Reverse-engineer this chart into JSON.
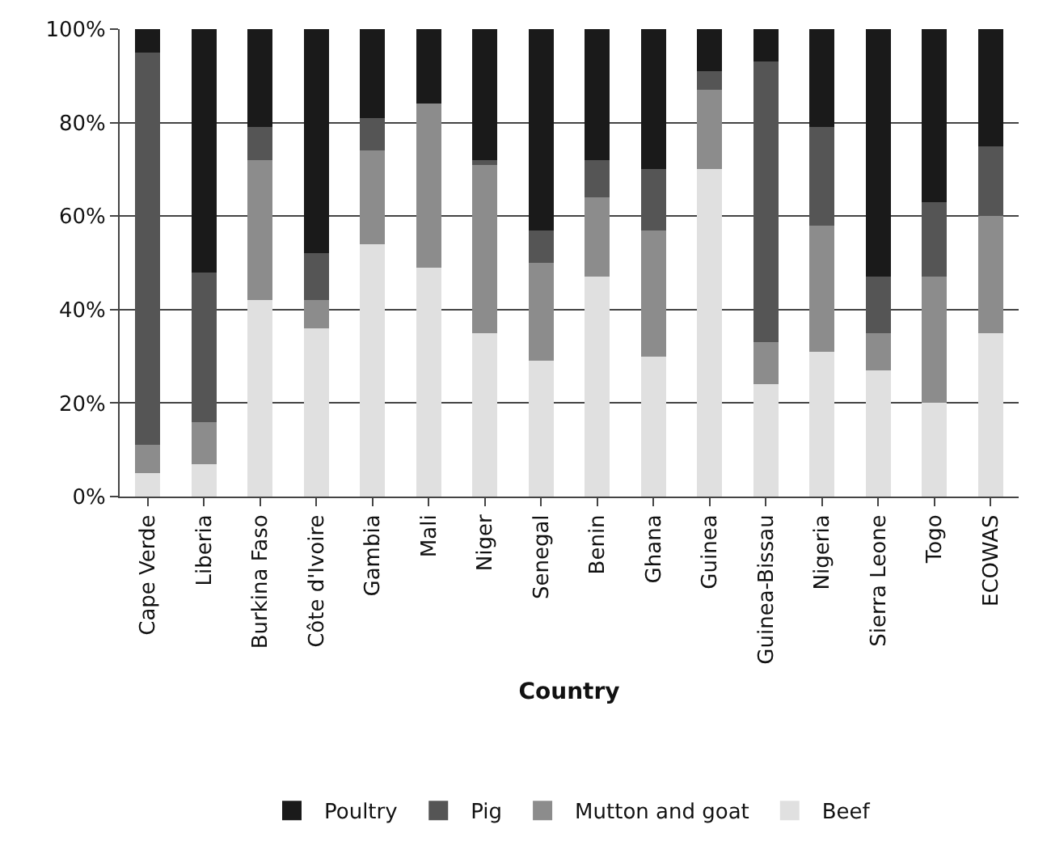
{
  "chart_data": {
    "type": "bar",
    "stacked": true,
    "xlabel": "Country",
    "categories": [
      "Cape Verde",
      "Liberia",
      "Burkina Faso",
      "Côte d'Ivoire",
      "Gambia",
      "Mali",
      "Niger",
      "Senegal",
      "Benin",
      "Ghana",
      "Guinea",
      "Guinea-Bissau",
      "Nigeria",
      "Sierra Leone",
      "Togo",
      "ECOWAS"
    ],
    "series": [
      {
        "name": "Beef",
        "color": "#e0e0e0",
        "values": [
          5,
          7,
          42,
          36,
          54,
          49,
          35,
          29,
          47,
          30,
          70,
          24,
          31,
          27,
          20,
          35
        ]
      },
      {
        "name": "Mutton and goat",
        "color": "#8c8c8c",
        "values": [
          6,
          9,
          30,
          6,
          20,
          35,
          36,
          21,
          17,
          27,
          17,
          9,
          27,
          8,
          27,
          25
        ]
      },
      {
        "name": "Pig",
        "color": "#555555",
        "values": [
          84,
          32,
          7,
          10,
          7,
          0,
          1,
          7,
          8,
          13,
          4,
          60,
          21,
          12,
          16,
          15
        ]
      },
      {
        "name": "Poultry",
        "color": "#1a1a1a",
        "values": [
          5,
          52,
          21,
          48,
          19,
          16,
          28,
          43,
          28,
          30,
          9,
          7,
          21,
          53,
          37,
          25
        ]
      }
    ],
    "ylim": [
      0,
      100
    ],
    "yticks": [
      {
        "value": 0,
        "label": "0%"
      },
      {
        "value": 20,
        "label": "20%"
      },
      {
        "value": 40,
        "label": "40%"
      },
      {
        "value": 60,
        "label": "60%"
      },
      {
        "value": 80,
        "label": "80%"
      },
      {
        "value": 100,
        "label": "100%"
      }
    ],
    "grid": "y",
    "legend": "bottom"
  }
}
